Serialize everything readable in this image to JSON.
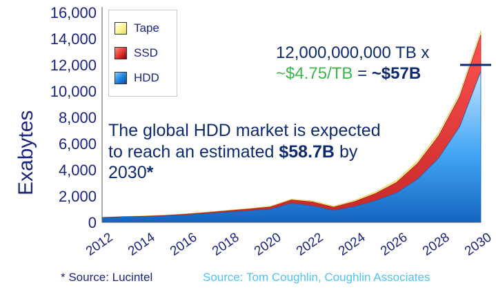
{
  "chart_data": {
    "type": "area",
    "stacked": true,
    "ylabel": "Exabytes",
    "ylim": [
      0,
      16000
    ],
    "yticks": [
      "0",
      "2,000",
      "4,000",
      "6,000",
      "8,000",
      "10,000",
      "12,000",
      "14,000",
      "16,000"
    ],
    "xlim": [
      2012,
      2030
    ],
    "xticks": [
      "2012",
      "2014",
      "2016",
      "2018",
      "2020",
      "2022",
      "2024",
      "2026",
      "2028",
      "2030"
    ],
    "x": [
      2012,
      2013,
      2014,
      2015,
      2016,
      2017,
      2018,
      2019,
      2020,
      2021,
      2022,
      2023,
      2024,
      2025,
      2026,
      2027,
      2028,
      2029,
      2030
    ],
    "series": [
      {
        "name": "HDD",
        "values": [
          350,
          400,
          430,
          480,
          560,
          660,
          780,
          880,
          1000,
          1450,
          1250,
          900,
          1200,
          1650,
          2250,
          3300,
          4900,
          7300,
          11500
        ]
      },
      {
        "name": "SSD",
        "values": [
          20,
          25,
          30,
          40,
          60,
          80,
          100,
          130,
          170,
          250,
          300,
          260,
          380,
          550,
          800,
          1200,
          1700,
          2300,
          2800
        ]
      },
      {
        "name": "Tape",
        "values": [
          20,
          20,
          25,
          30,
          30,
          40,
          40,
          50,
          60,
          70,
          80,
          70,
          90,
          120,
          150,
          180,
          220,
          250,
          300
        ]
      }
    ],
    "legend_position": "top-left",
    "grid": false
  },
  "legend": {
    "tape": "Tape",
    "ssd": "SSD",
    "hdd": "HDD"
  },
  "colors": {
    "hdd": "#1e88e5",
    "ssd": "#e53935",
    "tape": "#fff9a8",
    "axis_text": "#1a237e"
  },
  "annotation_calc": {
    "line1": "12,000,000,000 TB x",
    "line2_green": "~$4.75/TB",
    "line2_mid": " = ",
    "line2_bold": "~$57B"
  },
  "annotation_market": {
    "line1": "The global HDD market is expected",
    "line2_pre": "to reach an estimated ",
    "line2_bold": "$58.7B",
    "line2_post": " by",
    "line3_pre": "2030",
    "line3_bold": "*"
  },
  "sources": {
    "left": "* Source: Lucintel",
    "right": "Source: Tom Coughlin, Coughlin Associates"
  }
}
